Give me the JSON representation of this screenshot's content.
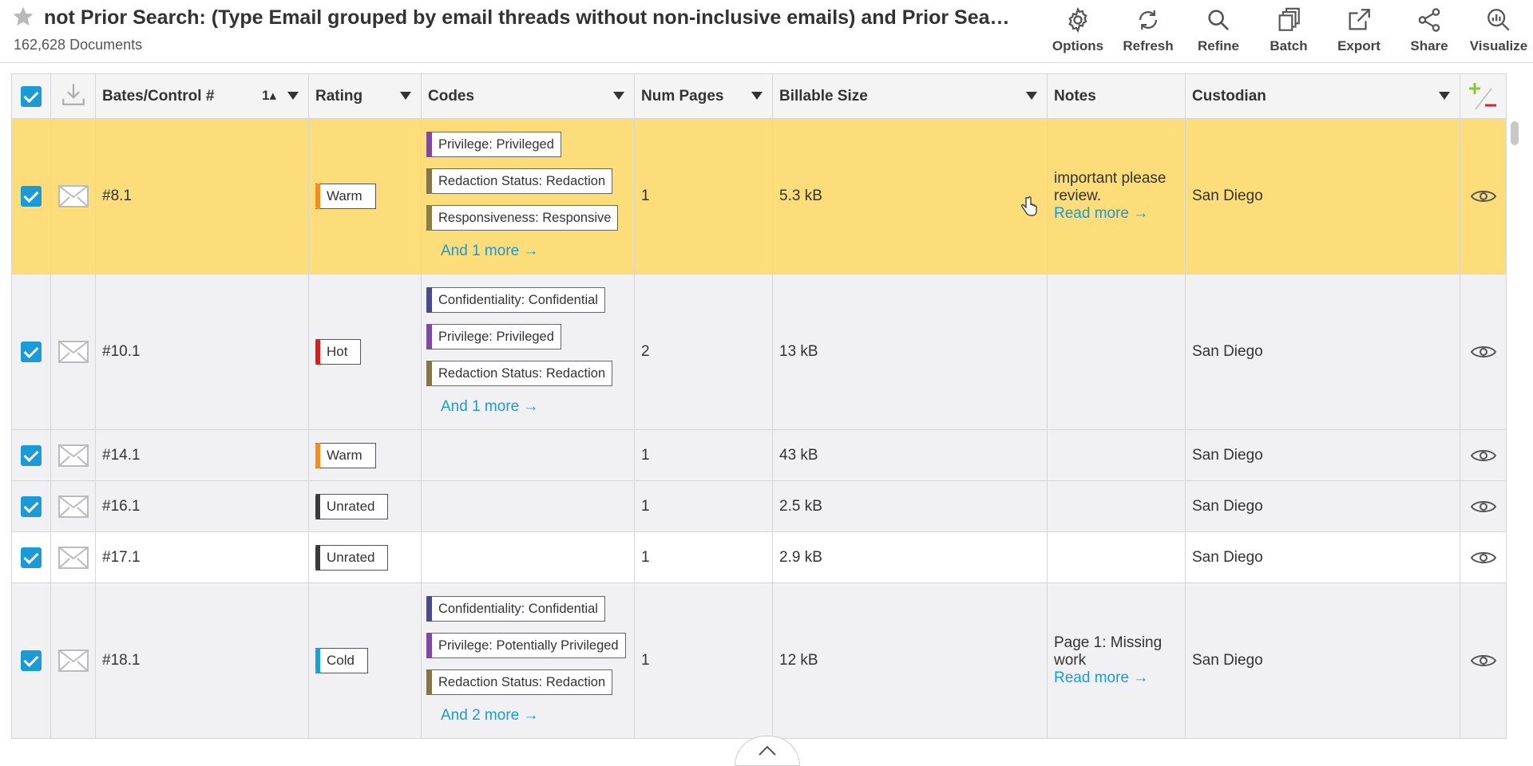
{
  "header": {
    "title": "not Prior Search: (Type Email grouped by email threads without non-inclusive emails) and Prior Search: (Type Email grouped by email threads without non-inclusive emails)",
    "doc_count": "162,628 Documents"
  },
  "toolbar": {
    "options": "Options",
    "refresh": "Refresh",
    "refine": "Refine",
    "batch": "Batch",
    "export": "Export",
    "share": "Share",
    "visualize": "Visualize"
  },
  "columns": {
    "bates": "Bates/Control #",
    "sort_indicator": "1▴",
    "rating": "Rating",
    "codes": "Codes",
    "num_pages": "Num Pages",
    "billable_size": "Billable Size",
    "notes": "Notes",
    "custodian": "Custodian"
  },
  "rows": [
    {
      "bates": "#8.1",
      "rating": "Warm",
      "codes": [
        "Privilege: Privileged",
        "Redaction Status: Redaction",
        "Responsiveness: Responsive"
      ],
      "more": "And 1 more →",
      "pages": "1",
      "size": "5.3 kB",
      "note": "important please review.",
      "read_more": "Read more →",
      "custodian": "San Diego"
    },
    {
      "bates": "#10.1",
      "rating": "Hot",
      "codes": [
        "Confidentiality: Confidential",
        "Privilege: Privileged",
        "Redaction Status: Redaction"
      ],
      "more": "And 1 more →",
      "pages": "2",
      "size": "13 kB",
      "note": "",
      "read_more": "",
      "custodian": "San Diego"
    },
    {
      "bates": "#14.1",
      "rating": "Warm",
      "codes": [],
      "more": "",
      "pages": "1",
      "size": "43 kB",
      "note": "",
      "read_more": "",
      "custodian": "San Diego"
    },
    {
      "bates": "#16.1",
      "rating": "Unrated",
      "codes": [],
      "more": "",
      "pages": "1",
      "size": "2.5 kB",
      "note": "",
      "read_more": "",
      "custodian": "San Diego"
    },
    {
      "bates": "#17.1",
      "rating": "Unrated",
      "codes": [],
      "more": "",
      "pages": "1",
      "size": "2.9 kB",
      "note": "",
      "read_more": "",
      "custodian": "San Diego"
    },
    {
      "bates": "#18.1",
      "rating": "Cold",
      "codes": [
        "Confidentiality: Confidential",
        "Privilege: Potentially Privileged",
        "Redaction Status: Redaction"
      ],
      "more": "And 2 more →",
      "pages": "1",
      "size": "12 kB",
      "note": "Page 1: Missing work",
      "read_more": "Read more →",
      "custodian": "San Diego"
    }
  ],
  "colors": {
    "accent": "#1a9ad6",
    "selected_row": "#fddc7a",
    "warm": "#f68b1f",
    "hot": "#d91c1c",
    "unrated": "#3a3a3a",
    "cold": "#1aa1d0"
  }
}
